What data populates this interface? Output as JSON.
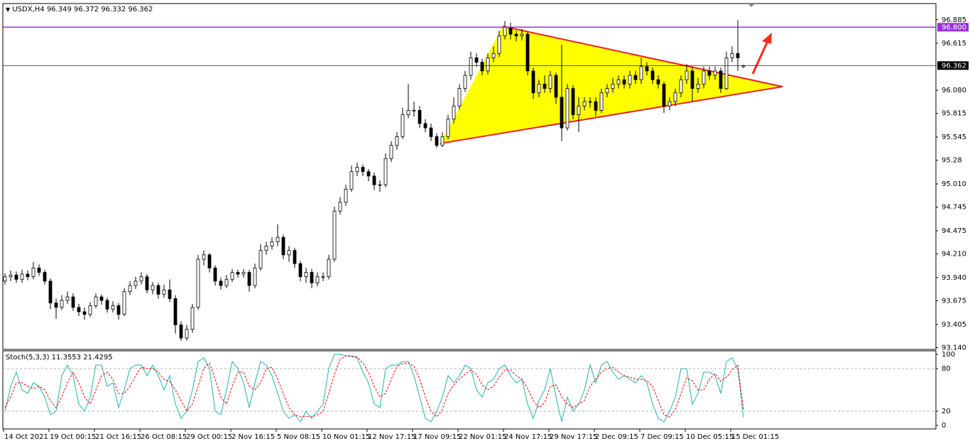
{
  "chart_data": {
    "type": "candlestick",
    "symbol": "USDX,H4",
    "quote": [
      96.349,
      96.372,
      96.332,
      96.362
    ],
    "up_color": "#ffffff",
    "down_color": "#000000",
    "wick_color": "#000000",
    "ylim": [
      93.12,
      97.07
    ],
    "yticks": [
      96.885,
      96.615,
      {
        "value": 96.08,
        "label": "96.080"
      },
      95.815,
      95.545,
      95.28,
      {
        "value": 95.01,
        "label": "95.010"
      },
      94.745,
      94.475,
      {
        "value": 94.21,
        "label": "94.210"
      },
      {
        "value": 93.94,
        "label": "93.940"
      },
      93.675,
      93.405,
      {
        "value": 93.14,
        "label": "93.140"
      }
    ],
    "levels": [
      {
        "value": 96.8,
        "label": "96.800",
        "color": "#9b30d9"
      },
      {
        "value": 96.362,
        "label": "96.362",
        "color": "#000000"
      }
    ],
    "x_labels": [
      "14 Oct 2021",
      "19 Oct 00:15",
      "21 Oct 16:15",
      "26 Oct 08:15",
      "29 Oct 00:15",
      "2 Nov 16:15",
      "5 Nov 08:15",
      "10 Nov 01:15",
      "12 Nov 17:15",
      "17 Nov 09:15",
      "22 Nov 01:15",
      "24 Nov 17:15",
      "29 Nov 17:15",
      "2 Dec 09:15",
      "7 Dec 09:15",
      "10 Dec 05:15",
      "15 Dec 01:15"
    ],
    "open": [
      93.9,
      93.95,
      93.97,
      93.92,
      93.98,
      93.95,
      94.05,
      94.0,
      93.9,
      93.65,
      93.6,
      93.68,
      93.72,
      93.6,
      93.55,
      93.52,
      93.62,
      93.72,
      93.68,
      93.58,
      93.62,
      93.52,
      93.78,
      93.85,
      93.9,
      93.95,
      93.8,
      93.85,
      93.75,
      93.8,
      93.7,
      93.4,
      93.25,
      93.35,
      93.6,
      94.15,
      94.2,
      94.05,
      93.9,
      93.85,
      93.92,
      94.0,
      93.98,
      94.0,
      93.85,
      94.05,
      94.25,
      94.3,
      94.35,
      94.4,
      94.2,
      94.25,
      94.1,
      93.95,
      94.0,
      93.88,
      93.95,
      93.95,
      94.15,
      94.7,
      94.8,
      94.95,
      95.15,
      95.2,
      95.15,
      95.1,
      95.0,
      95.0,
      95.3,
      95.45,
      95.55,
      95.8,
      95.85,
      95.85,
      95.7,
      95.65,
      95.55,
      95.45,
      95.55,
      95.75,
      95.9,
      96.1,
      96.25,
      96.45,
      96.4,
      96.3,
      96.45,
      96.5,
      96.7,
      96.8,
      96.72,
      96.7,
      96.72,
      96.3,
      96.05,
      96.15,
      96.1,
      96.25,
      96.0,
      95.65,
      96.1,
      95.8,
      95.9,
      95.95,
      95.95,
      95.85,
      96.05,
      96.1,
      96.15,
      96.2,
      96.15,
      96.25,
      96.2,
      96.35,
      96.3,
      96.2,
      96.15,
      95.9,
      95.95,
      96.05,
      96.2,
      96.3,
      96.1,
      96.15,
      96.3,
      96.25,
      96.3,
      96.1,
      96.45,
      96.5,
      96.349
    ],
    "high": [
      93.99,
      94.02,
      94.01,
      94.03,
      94.02,
      94.12,
      94.09,
      94.03,
      93.93,
      93.7,
      93.74,
      93.78,
      93.76,
      93.64,
      93.6,
      93.66,
      93.76,
      93.75,
      93.71,
      93.67,
      93.65,
      93.82,
      93.9,
      93.95,
      94.0,
      93.98,
      93.89,
      93.88,
      93.86,
      93.92,
      93.74,
      93.44,
      93.4,
      93.64,
      94.2,
      94.25,
      94.22,
      94.08,
      93.94,
      93.97,
      94.04,
      94.03,
      94.04,
      94.03,
      94.1,
      94.32,
      94.35,
      94.4,
      94.55,
      94.43,
      94.3,
      94.28,
      94.13,
      94.05,
      94.04,
      94.0,
      94.0,
      94.2,
      94.75,
      94.86,
      95.0,
      95.22,
      95.25,
      95.23,
      95.18,
      95.14,
      95.05,
      95.36,
      95.5,
      95.6,
      95.88,
      96.15,
      95.95,
      95.9,
      95.75,
      95.7,
      95.59,
      95.6,
      95.8,
      96.0,
      96.15,
      96.3,
      96.52,
      96.5,
      96.44,
      96.5,
      96.58,
      96.76,
      96.87,
      96.85,
      96.76,
      96.78,
      96.75,
      96.34,
      96.2,
      96.25,
      96.3,
      96.28,
      96.6,
      96.15,
      96.14,
      96.0,
      96.0,
      96.0,
      96.0,
      96.1,
      96.15,
      96.22,
      96.25,
      96.25,
      96.3,
      96.3,
      96.45,
      96.4,
      96.34,
      96.25,
      96.18,
      96.0,
      96.1,
      96.25,
      96.38,
      96.35,
      96.22,
      96.35,
      96.35,
      96.35,
      96.34,
      96.52,
      96.58,
      96.88,
      96.372
    ],
    "low": [
      93.86,
      93.9,
      93.88,
      93.88,
      93.91,
      93.92,
      93.96,
      93.86,
      93.58,
      93.47,
      93.57,
      93.64,
      93.56,
      93.5,
      93.46,
      93.49,
      93.59,
      93.63,
      93.54,
      93.54,
      93.46,
      93.5,
      93.74,
      93.81,
      93.86,
      93.76,
      93.75,
      93.7,
      93.71,
      93.66,
      93.3,
      93.22,
      93.22,
      93.31,
      93.57,
      94.08,
      94.0,
      93.85,
      93.8,
      93.82,
      93.89,
      93.94,
      93.94,
      93.78,
      93.82,
      94.02,
      94.2,
      94.26,
      94.3,
      94.15,
      94.12,
      94.05,
      93.9,
      93.88,
      93.82,
      93.84,
      93.9,
      93.92,
      94.12,
      94.66,
      94.76,
      94.92,
      95.1,
      95.1,
      95.04,
      94.94,
      94.92,
      94.97,
      95.26,
      95.4,
      95.52,
      95.76,
      95.78,
      95.65,
      95.6,
      95.5,
      95.42,
      95.43,
      95.52,
      95.7,
      95.86,
      96.06,
      96.2,
      96.35,
      96.25,
      96.26,
      96.4,
      96.46,
      96.66,
      96.66,
      96.64,
      96.65,
      96.25,
      95.98,
      96.0,
      96.05,
      96.05,
      95.92,
      95.5,
      95.62,
      95.75,
      95.6,
      95.85,
      95.88,
      95.78,
      95.82,
      96.0,
      96.05,
      96.1,
      96.1,
      96.1,
      96.15,
      96.15,
      96.25,
      96.15,
      96.1,
      95.82,
      95.85,
      95.9,
      96.0,
      96.15,
      95.95,
      96.05,
      96.1,
      96.2,
      96.2,
      96.05,
      96.08,
      96.4,
      96.3,
      96.332
    ],
    "close": [
      93.95,
      93.97,
      93.92,
      93.98,
      93.95,
      94.05,
      94.0,
      93.9,
      93.65,
      93.6,
      93.68,
      93.72,
      93.6,
      93.55,
      93.52,
      93.62,
      93.72,
      93.68,
      93.58,
      93.62,
      93.52,
      93.78,
      93.85,
      93.9,
      93.95,
      93.8,
      93.85,
      93.75,
      93.8,
      93.7,
      93.4,
      93.25,
      93.35,
      93.6,
      94.15,
      94.2,
      94.05,
      93.9,
      93.85,
      93.92,
      94.0,
      93.98,
      94.0,
      93.85,
      94.05,
      94.25,
      94.3,
      94.35,
      94.4,
      94.2,
      94.25,
      94.1,
      93.95,
      94.0,
      93.88,
      93.95,
      93.95,
      94.15,
      94.7,
      94.8,
      94.95,
      95.15,
      95.2,
      95.15,
      95.1,
      95.0,
      95.0,
      95.3,
      95.45,
      95.55,
      95.8,
      95.85,
      95.85,
      95.7,
      95.65,
      95.55,
      95.45,
      95.55,
      95.75,
      95.9,
      96.1,
      96.25,
      96.45,
      96.4,
      96.3,
      96.45,
      96.5,
      96.7,
      96.8,
      96.72,
      96.7,
      96.72,
      96.3,
      96.05,
      96.15,
      96.1,
      96.25,
      96.0,
      95.65,
      96.1,
      95.8,
      95.9,
      95.95,
      95.95,
      95.85,
      96.05,
      96.1,
      96.15,
      96.2,
      96.15,
      96.25,
      96.2,
      96.35,
      96.3,
      96.2,
      96.15,
      95.9,
      95.95,
      96.05,
      96.2,
      96.3,
      96.1,
      96.15,
      96.3,
      96.25,
      96.3,
      96.1,
      96.45,
      96.5,
      96.45,
      96.362
    ],
    "indicator": {
      "type": "line",
      "name": "Stoch(5,3,3)",
      "ylim": [
        -5,
        105
      ],
      "yticks": [
        100,
        80,
        20,
        0
      ],
      "levels": [
        80,
        20
      ],
      "series": [
        {
          "name": "Main",
          "color": "#20b2aa",
          "values": [
            20,
            55,
            75,
            50,
            45,
            60,
            55,
            40,
            15,
            20,
            70,
            85,
            70,
            30,
            20,
            40,
            85,
            85,
            55,
            60,
            25,
            50,
            80,
            85,
            85,
            70,
            85,
            70,
            50,
            70,
            30,
            10,
            20,
            50,
            90,
            95,
            80,
            20,
            15,
            50,
            90,
            80,
            60,
            25,
            60,
            90,
            85,
            70,
            45,
            20,
            10,
            15,
            5,
            20,
            10,
            20,
            30,
            80,
            100,
            100,
            98,
            97,
            95,
            75,
            60,
            30,
            25,
            80,
            85,
            85,
            90,
            90,
            70,
            40,
            10,
            5,
            20,
            40,
            70,
            60,
            70,
            85,
            80,
            50,
            40,
            60,
            65,
            80,
            85,
            70,
            60,
            65,
            30,
            10,
            35,
            50,
            80,
            40,
            5,
            40,
            20,
            30,
            50,
            85,
            60,
            85,
            90,
            75,
            65,
            70,
            65,
            60,
            70,
            60,
            30,
            10,
            5,
            20,
            40,
            80,
            80,
            30,
            45,
            75,
            75,
            70,
            45,
            90,
            95,
            80,
            11.3553
          ]
        },
        {
          "name": "Signal",
          "color": "#ff0000",
          "values": [
            25,
            40,
            60,
            60,
            55,
            52,
            55,
            50,
            35,
            25,
            40,
            60,
            75,
            60,
            40,
            30,
            50,
            70,
            75,
            65,
            45,
            45,
            55,
            70,
            82,
            80,
            80,
            75,
            65,
            62,
            50,
            35,
            20,
            30,
            55,
            80,
            88,
            65,
            40,
            30,
            55,
            75,
            75,
            55,
            50,
            60,
            80,
            82,
            65,
            45,
            25,
            15,
            12,
            13,
            12,
            15,
            20,
            45,
            72,
            93,
            98,
            98,
            96,
            88,
            75,
            55,
            40,
            45,
            65,
            83,
            87,
            88,
            83,
            65,
            40,
            20,
            12,
            22,
            45,
            57,
            65,
            72,
            78,
            72,
            57,
            50,
            55,
            68,
            78,
            78,
            70,
            65,
            52,
            35,
            25,
            32,
            55,
            57,
            40,
            30,
            25,
            30,
            35,
            55,
            65,
            75,
            80,
            82,
            75,
            70,
            68,
            65,
            65,
            63,
            55,
            35,
            15,
            12,
            22,
            45,
            67,
            63,
            50,
            50,
            65,
            73,
            62,
            68,
            78,
            85,
            21.4295
          ]
        }
      ]
    }
  }
}
